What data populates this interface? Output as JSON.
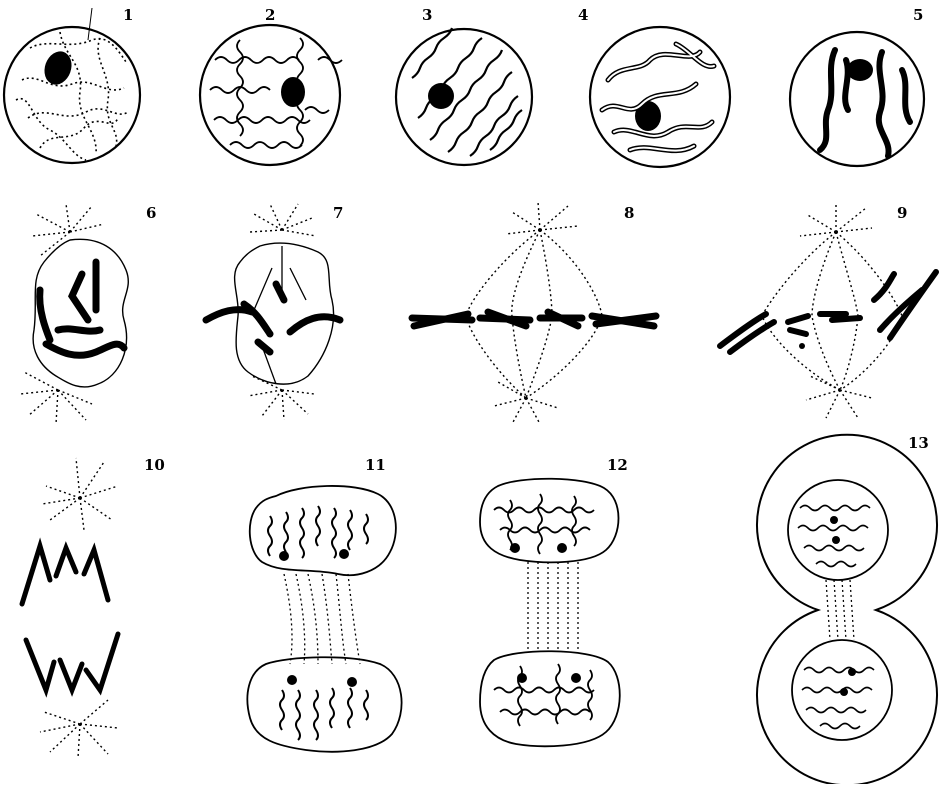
{
  "figure": {
    "stroke_color": "#000000",
    "background": "#ffffff",
    "stages": [
      {
        "id": "1",
        "label": "1"
      },
      {
        "id": "2",
        "label": "2"
      },
      {
        "id": "3",
        "label": "3"
      },
      {
        "id": "4",
        "label": "4"
      },
      {
        "id": "5",
        "label": "5"
      },
      {
        "id": "6",
        "label": "6"
      },
      {
        "id": "7",
        "label": "7"
      },
      {
        "id": "8",
        "label": "8"
      },
      {
        "id": "9",
        "label": "9"
      },
      {
        "id": "10",
        "label": "10"
      },
      {
        "id": "11",
        "label": "11"
      },
      {
        "id": "12",
        "label": "12"
      },
      {
        "id": "13",
        "label": "13"
      }
    ]
  }
}
